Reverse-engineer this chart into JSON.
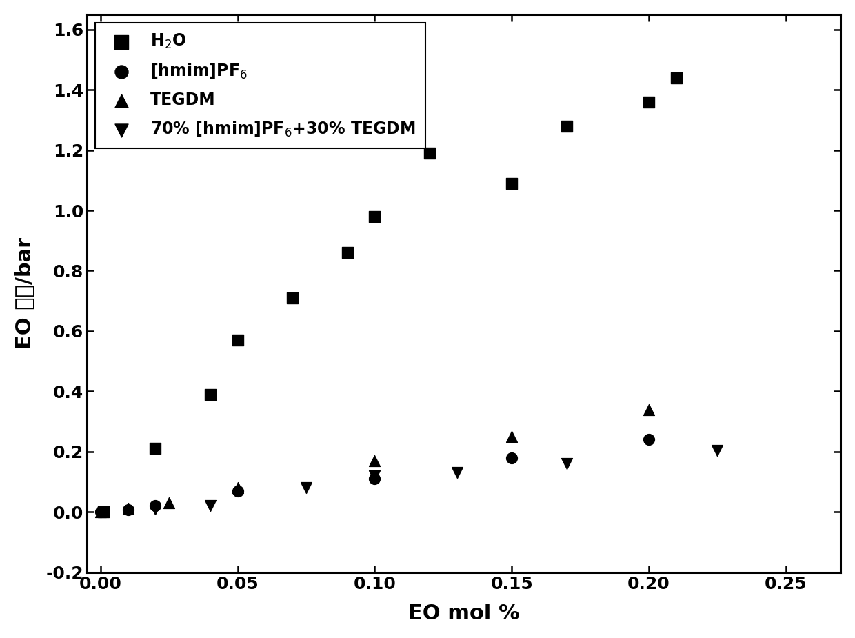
{
  "series": [
    {
      "label": "H$_2$O",
      "marker": "s",
      "x": [
        0.001,
        0.02,
        0.04,
        0.05,
        0.07,
        0.09,
        0.1,
        0.12,
        0.15,
        0.17,
        0.2,
        0.21
      ],
      "y": [
        0.0,
        0.21,
        0.39,
        0.57,
        0.71,
        0.86,
        0.98,
        1.19,
        1.09,
        1.28,
        1.36,
        1.44
      ]
    },
    {
      "label": "[hmim]PF$_6$",
      "marker": "o",
      "x": [
        0.0,
        0.01,
        0.02,
        0.05,
        0.1,
        0.15,
        0.2
      ],
      "y": [
        0.0,
        0.008,
        0.02,
        0.07,
        0.11,
        0.18,
        0.24
      ]
    },
    {
      "label": "TEGDM",
      "marker": "^",
      "x": [
        0.0,
        0.01,
        0.025,
        0.05,
        0.1,
        0.15,
        0.2
      ],
      "y": [
        0.0,
        0.012,
        0.03,
        0.08,
        0.17,
        0.25,
        0.34
      ]
    },
    {
      "label": "70% [hmim]PF$_6$+30% TEGDM",
      "marker": "v",
      "x": [
        0.02,
        0.04,
        0.075,
        0.1,
        0.13,
        0.17,
        0.225
      ],
      "y": [
        0.01,
        0.02,
        0.08,
        0.12,
        0.13,
        0.16,
        0.205
      ]
    }
  ],
  "xlabel": "EO mol %",
  "ylabel_prefix": "EO ",
  "ylabel_chinese": "压力",
  "ylabel_suffix": "/bar",
  "xlim": [
    -0.005,
    0.27
  ],
  "ylim": [
    -0.2,
    1.65
  ],
  "xticks": [
    0.0,
    0.05,
    0.1,
    0.15,
    0.2,
    0.25
  ],
  "yticks": [
    -0.2,
    0.0,
    0.2,
    0.4,
    0.6,
    0.8,
    1.0,
    1.2,
    1.4,
    1.6
  ],
  "marker_size": 130,
  "color": "black",
  "background_color": "#ffffff",
  "legend_fontsize": 17,
  "axis_fontsize": 22,
  "tick_fontsize": 18
}
